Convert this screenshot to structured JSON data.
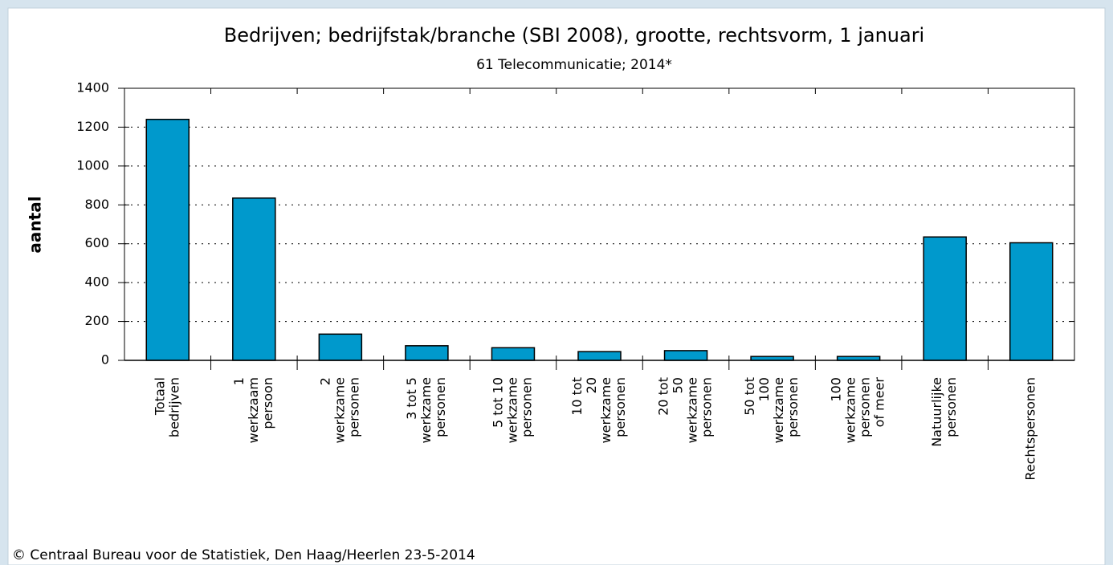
{
  "chart_data": {
    "type": "bar",
    "title": "Bedrijven; bedrijfstak/branche (SBI 2008), grootte, rechtsvorm, 1 januari",
    "subtitle": "61 Telecommunicatie; 2014*",
    "y_label": "aantal",
    "footer": "© Centraal Bureau voor de Statistiek, Den Haag/Heerlen 23-5-2014",
    "categories": [
      [
        "Totaal",
        "bedrijven"
      ],
      [
        "1",
        "werkzaam",
        "persoon"
      ],
      [
        "2",
        "werkzame",
        "personen"
      ],
      [
        "3 tot 5",
        "werkzame",
        "personen"
      ],
      [
        "5 tot 10",
        "werkzame",
        "personen"
      ],
      [
        "10 tot",
        "20",
        "werkzame",
        "personen"
      ],
      [
        "20 tot",
        "50",
        "werkzame",
        "personen"
      ],
      [
        "50 tot",
        "100",
        "werkzame",
        "personen"
      ],
      [
        "100",
        "werkzame",
        "personen",
        "of meer"
      ],
      [
        "Natuurlijke",
        "personen"
      ],
      [
        "Rechtspersonen"
      ]
    ],
    "values": [
      1240,
      835,
      135,
      75,
      65,
      45,
      50,
      20,
      20,
      635,
      605
    ],
    "color": "#0099cc",
    "ylim": [
      0,
      1400
    ],
    "yticks": [
      0,
      200,
      400,
      600,
      800,
      1000,
      1200,
      1400
    ],
    "grid": true
  }
}
